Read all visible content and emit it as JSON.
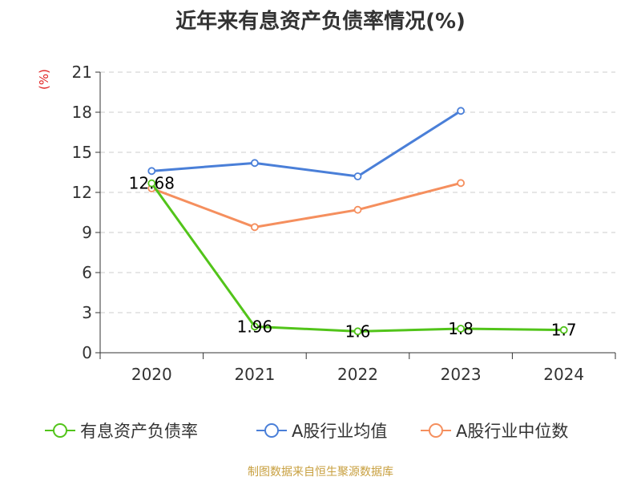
{
  "title": "近年来有息资产负债率情况(%)",
  "unit": "(%)",
  "source": "制图数据来自恒生聚源数据库",
  "colors": {
    "series_1": "#52c41a",
    "series_2": "#4a7fd8",
    "series_3": "#f58f5e",
    "grid": "#cccccc",
    "axis": "#333333"
  },
  "chart_data": {
    "type": "line",
    "title": "近年来有息资产负债率情况(%)",
    "ylabel": "(%)",
    "categories": [
      "2020",
      "2021",
      "2022",
      "2023",
      "2024"
    ],
    "ylim": [
      0,
      21
    ],
    "yticks": [
      0,
      3,
      6,
      9,
      12,
      15,
      18,
      21
    ],
    "grid": true,
    "legend_position": "bottom",
    "series": [
      {
        "name": "有息资产负债率",
        "values": [
          12.68,
          1.96,
          1.6,
          1.8,
          1.7
        ],
        "labels": [
          "12.68",
          "1.96",
          "1.6",
          "1.8",
          "1.7"
        ]
      },
      {
        "name": "A股行业均值",
        "values": [
          13.6,
          14.2,
          13.2,
          18.1,
          null
        ]
      },
      {
        "name": "A股行业中位数",
        "values": [
          12.3,
          9.4,
          10.7,
          12.7,
          null
        ]
      }
    ]
  }
}
